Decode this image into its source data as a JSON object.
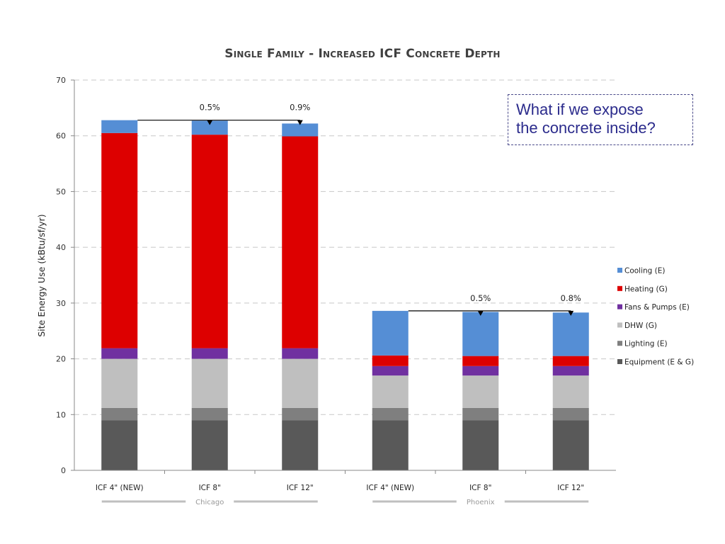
{
  "chart_data": {
    "type": "bar",
    "stacked": true,
    "title": "Single Family - Increased ICF Concrete Depth",
    "xlabel": "",
    "ylabel": "Site Energy Use (kBtu/sf/yr)",
    "ylim": [
      0,
      70
    ],
    "yticks": [
      0,
      10,
      20,
      30,
      40,
      50,
      60,
      70
    ],
    "grid": true,
    "legend_position": "right",
    "categories": [
      "ICF 4\" (NEW)",
      "ICF 8\"",
      "ICF 12\"",
      "ICF 4\" (NEW)",
      "ICF 8\"",
      "ICF 12\""
    ],
    "groups": [
      {
        "name": "Chicago",
        "categories": [
          0,
          1,
          2
        ]
      },
      {
        "name": "Phoenix",
        "categories": [
          3,
          4,
          5
        ]
      }
    ],
    "series": [
      {
        "name": "Equipment (E & G)",
        "color": "#595959",
        "values": [
          9.0,
          9.0,
          9.0,
          9.0,
          9.0,
          9.0
        ]
      },
      {
        "name": "Lighting (E)",
        "color": "#7f7f7f",
        "values": [
          2.2,
          2.2,
          2.2,
          2.2,
          2.2,
          2.2
        ]
      },
      {
        "name": "DHW (G)",
        "color": "#bfbfbf",
        "values": [
          8.8,
          8.8,
          8.8,
          5.8,
          5.8,
          5.8
        ]
      },
      {
        "name": "Fans & Pumps (E)",
        "color": "#7030a0",
        "values": [
          1.9,
          1.9,
          1.9,
          1.7,
          1.7,
          1.7
        ]
      },
      {
        "name": "Heating (G)",
        "color": "#dd0000",
        "values": [
          38.6,
          38.3,
          38.0,
          1.9,
          1.8,
          1.8
        ]
      },
      {
        "name": "Cooling (E)",
        "color": "#558ed5",
        "values": [
          2.3,
          2.5,
          2.3,
          8.0,
          7.9,
          7.8
        ]
      }
    ],
    "legend_order": [
      "Cooling (E)",
      "Heating (G)",
      "Fans & Pumps (E)",
      "DHW (G)",
      "Lighting (E)",
      "Equipment (E & G)"
    ],
    "annotations": [
      {
        "group": "Chicago",
        "baseline_category": 0,
        "target_category": 1,
        "label": "0.5%"
      },
      {
        "group": "Chicago",
        "baseline_category": 0,
        "target_category": 2,
        "label": "0.9%"
      },
      {
        "group": "Phoenix",
        "baseline_category": 3,
        "target_category": 4,
        "label": "0.5%"
      },
      {
        "group": "Phoenix",
        "baseline_category": 3,
        "target_category": 5,
        "label": "0.8%"
      }
    ]
  },
  "callout": {
    "line1": "What if we expose",
    "line2": "the concrete inside?"
  }
}
